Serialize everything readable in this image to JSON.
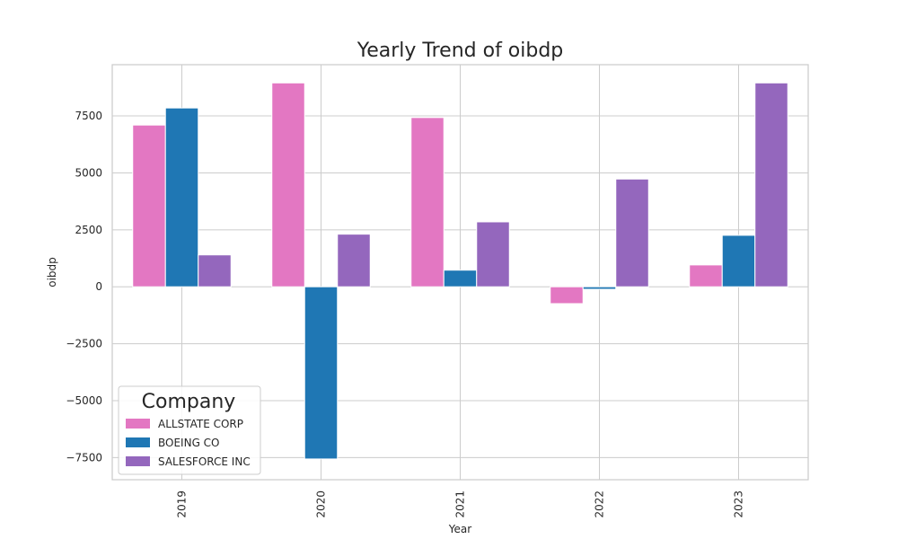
{
  "chart_data": {
    "type": "bar",
    "title": "Yearly Trend of oibdp",
    "xlabel": "Year",
    "ylabel": "oibdp",
    "categories": [
      "2019",
      "2020",
      "2021",
      "2022",
      "2023"
    ],
    "series": [
      {
        "name": "ALLSTATE CORP",
        "color": "#e377c2",
        "values": [
          7100,
          8950,
          7430,
          -740,
          960
        ]
      },
      {
        "name": "BOEING CO",
        "color": "#1f77b4",
        "values": [
          7850,
          -7560,
          730,
          -110,
          2260
        ]
      },
      {
        "name": "SALESFORCE INC",
        "color": "#9467bd",
        "values": [
          1400,
          2310,
          2850,
          4730,
          8950
        ]
      }
    ],
    "ylim": [
      -8470,
      9750
    ],
    "yticks": [
      -7500,
      -5000,
      -2500,
      0,
      2500,
      5000,
      7500
    ],
    "ytick_labels": [
      "−7500",
      "−5000",
      "−2500",
      "0",
      "2500",
      "5000",
      "7500"
    ],
    "grid": true,
    "legend": {
      "title": "Company",
      "placement": "lower-left"
    }
  }
}
